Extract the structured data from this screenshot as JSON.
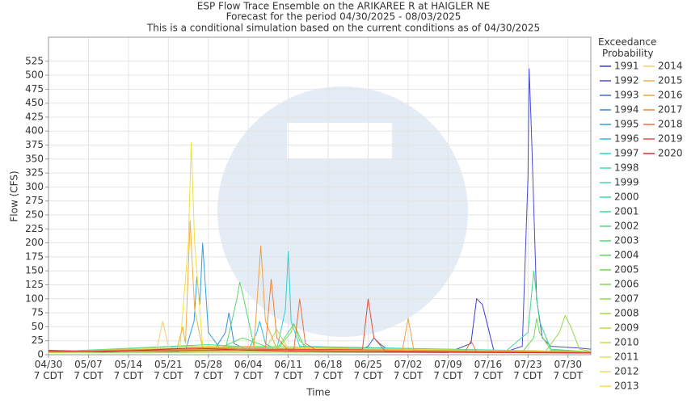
{
  "chart_data": {
    "type": "line",
    "title": "ESP Flow Trace Ensemble on the ARIKAREE R at HAIGLER NE",
    "subtitle": "Forecast for the period 04/30/2025 - 08/03/2025",
    "note": "This is a conditional simulation based on the current conditions as of 04/30/2025",
    "x_label": "Time",
    "y_label": "Flow (CFS)",
    "legend_title": "Exceedance Probability",
    "grid": true,
    "xlim": [
      0,
      95
    ],
    "ylim": [
      0,
      568
    ],
    "xticks": [
      {
        "value": 0,
        "label": "04/30 7 CDT"
      },
      {
        "value": 7,
        "label": "05/07 7 CDT"
      },
      {
        "value": 14,
        "label": "05/14 7 CDT"
      },
      {
        "value": 21,
        "label": "05/21 7 CDT"
      },
      {
        "value": 28,
        "label": "05/28 7 CDT"
      },
      {
        "value": 35,
        "label": "06/04 7 CDT"
      },
      {
        "value": 42,
        "label": "06/11 7 CDT"
      },
      {
        "value": 49,
        "label": "06/18 7 CDT"
      },
      {
        "value": 56,
        "label": "06/25 7 CDT"
      },
      {
        "value": 63,
        "label": "07/02 7 CDT"
      },
      {
        "value": 70,
        "label": "07/09 7 CDT"
      },
      {
        "value": 77,
        "label": "07/16 7 CDT"
      },
      {
        "value": 84,
        "label": "07/23 7 CDT"
      },
      {
        "value": 91,
        "label": "07/30 7 CDT"
      }
    ],
    "yticks": [
      0,
      25,
      50,
      75,
      100,
      125,
      150,
      175,
      200,
      225,
      250,
      275,
      300,
      325,
      350,
      375,
      400,
      425,
      450,
      475,
      500,
      525
    ],
    "series": [
      {
        "name": "1991",
        "color": "#3a3ad0",
        "x": [
          0,
          70,
          74,
          75,
          76,
          78,
          95
        ],
        "values": [
          5,
          4,
          20,
          100,
          90,
          8,
          4
        ]
      },
      {
        "name": "1992",
        "color": "#4a4ad8",
        "x": [
          0,
          80,
          83,
          84,
          84.2,
          84.6,
          85.5,
          86.5,
          88,
          93,
          95
        ],
        "values": [
          5,
          5,
          15,
          320,
          512,
          400,
          100,
          30,
          15,
          12,
          10
        ]
      },
      {
        "name": "1993",
        "color": "#3a6ad8",
        "x": [
          0,
          54,
          56,
          57,
          58,
          60,
          95
        ],
        "values": [
          5,
          6,
          15,
          30,
          20,
          5,
          4
        ]
      },
      {
        "name": "1994",
        "color": "#3a8ae0",
        "x": [
          0,
          29,
          31,
          31.6,
          32.5,
          35,
          95
        ],
        "values": [
          6,
          8,
          40,
          75,
          20,
          8,
          5
        ]
      },
      {
        "name": "1995",
        "color": "#30a0e0",
        "x": [
          0,
          24,
          25.5,
          26,
          26.5,
          27,
          28,
          30,
          95
        ],
        "values": [
          5,
          8,
          60,
          140,
          90,
          200,
          40,
          12,
          5
        ]
      },
      {
        "name": "1996",
        "color": "#30b8e0",
        "x": [
          0,
          35,
          36.5,
          37,
          38,
          40,
          95
        ],
        "values": [
          4,
          8,
          40,
          60,
          20,
          8,
          4
        ]
      },
      {
        "name": "1997",
        "color": "#30d0d0",
        "x": [
          0,
          40,
          41.5,
          42,
          42.5,
          44,
          95
        ],
        "values": [
          5,
          10,
          80,
          185,
          60,
          15,
          5
        ]
      },
      {
        "name": "1998",
        "color": "#40d8c0",
        "x": [
          0,
          30,
          50,
          95
        ],
        "values": [
          4,
          10,
          6,
          3
        ]
      },
      {
        "name": "1999",
        "color": "#40d8b0",
        "x": [
          0,
          28,
          45,
          95
        ],
        "values": [
          5,
          18,
          8,
          4
        ]
      },
      {
        "name": "2000",
        "color": "#40d8a0",
        "x": [
          0,
          35,
          55,
          95
        ],
        "values": [
          4,
          12,
          6,
          3
        ]
      },
      {
        "name": "2001",
        "color": "#40d890",
        "x": [
          0,
          80,
          84,
          85,
          86,
          88,
          95
        ],
        "values": [
          4,
          5,
          40,
          150,
          60,
          10,
          5
        ]
      },
      {
        "name": "2002",
        "color": "#50d880",
        "x": [
          0,
          40,
          43,
          45,
          95
        ],
        "values": [
          5,
          10,
          55,
          10,
          5
        ]
      },
      {
        "name": "2003",
        "color": "#50d870",
        "x": [
          0,
          31,
          33,
          33.5,
          34,
          36,
          95
        ],
        "values": [
          5,
          10,
          100,
          130,
          110,
          15,
          5
        ]
      },
      {
        "name": "2004",
        "color": "#60d860",
        "x": [
          0,
          30,
          34,
          40,
          95
        ],
        "values": [
          6,
          12,
          30,
          8,
          4
        ]
      },
      {
        "name": "2005",
        "color": "#70d850",
        "x": [
          0,
          83,
          85,
          85.5,
          86,
          88,
          95
        ],
        "values": [
          4,
          5,
          30,
          65,
          40,
          8,
          5
        ]
      },
      {
        "name": "2006",
        "color": "#80d850",
        "x": [
          0,
          40,
          42.5,
          43,
          44,
          46,
          95
        ],
        "values": [
          5,
          8,
          40,
          55,
          25,
          8,
          4
        ]
      },
      {
        "name": "2007",
        "color": "#90d850",
        "x": [
          0,
          87,
          89.5,
          90.5,
          91.5,
          93,
          95
        ],
        "values": [
          4,
          5,
          40,
          70,
          50,
          10,
          6
        ]
      },
      {
        "name": "2008",
        "color": "#a8d850",
        "x": [
          0,
          25,
          45,
          95
        ],
        "values": [
          5,
          15,
          8,
          4
        ]
      },
      {
        "name": "2009",
        "color": "#c0d850",
        "x": [
          0,
          38,
          40,
          42,
          95
        ],
        "values": [
          5,
          10,
          45,
          10,
          4
        ]
      },
      {
        "name": "2010",
        "color": "#d0d850",
        "x": [
          0,
          20,
          50,
          95
        ],
        "values": [
          6,
          10,
          7,
          3
        ]
      },
      {
        "name": "2011",
        "color": "#e0e050",
        "x": [
          0,
          30,
          60,
          95
        ],
        "values": [
          4,
          8,
          5,
          3
        ]
      },
      {
        "name": "2012",
        "color": "#e8e060",
        "x": [
          0,
          15,
          40,
          95
        ],
        "values": [
          5,
          9,
          6,
          3
        ]
      },
      {
        "name": "2013",
        "color": "#f0e040",
        "x": [
          0,
          23,
          24.5,
          25,
          25.6,
          27,
          95
        ],
        "values": [
          5,
          10,
          200,
          380,
          200,
          15,
          5
        ]
      },
      {
        "name": "2014",
        "color": "#f0d070",
        "x": [
          0,
          19,
          20,
          21,
          23,
          95
        ],
        "values": [
          5,
          10,
          60,
          15,
          6,
          4
        ]
      },
      {
        "name": "2015",
        "color": "#f0b040",
        "x": [
          0,
          22.5,
          23.5,
          24,
          24.8,
          25.6,
          27,
          95
        ],
        "values": [
          6,
          10,
          50,
          20,
          240,
          80,
          12,
          5
        ]
      },
      {
        "name": "2016",
        "color": "#f0a040",
        "x": [
          0,
          36,
          37.2,
          38,
          40,
          62,
          63,
          64,
          95
        ],
        "values": [
          5,
          15,
          195,
          60,
          10,
          8,
          65,
          8,
          4
        ]
      },
      {
        "name": "2017",
        "color": "#f08040",
        "x": [
          0,
          38,
          39,
          40,
          42,
          95
        ],
        "values": [
          5,
          12,
          135,
          30,
          8,
          4
        ]
      },
      {
        "name": "2018",
        "color": "#e87040",
        "x": [
          0,
          43,
          44,
          45,
          47,
          73,
          74,
          75,
          95
        ],
        "values": [
          5,
          10,
          100,
          20,
          8,
          5,
          25,
          5,
          3
        ]
      },
      {
        "name": "2019",
        "color": "#e05040",
        "x": [
          0,
          55,
          56,
          57,
          59,
          95
        ],
        "values": [
          6,
          10,
          100,
          30,
          6,
          3
        ]
      },
      {
        "name": "2020",
        "color": "#d03030",
        "x": [
          0,
          10,
          25,
          35,
          50,
          95
        ],
        "values": [
          8,
          5,
          12,
          8,
          5,
          3
        ]
      }
    ]
  }
}
